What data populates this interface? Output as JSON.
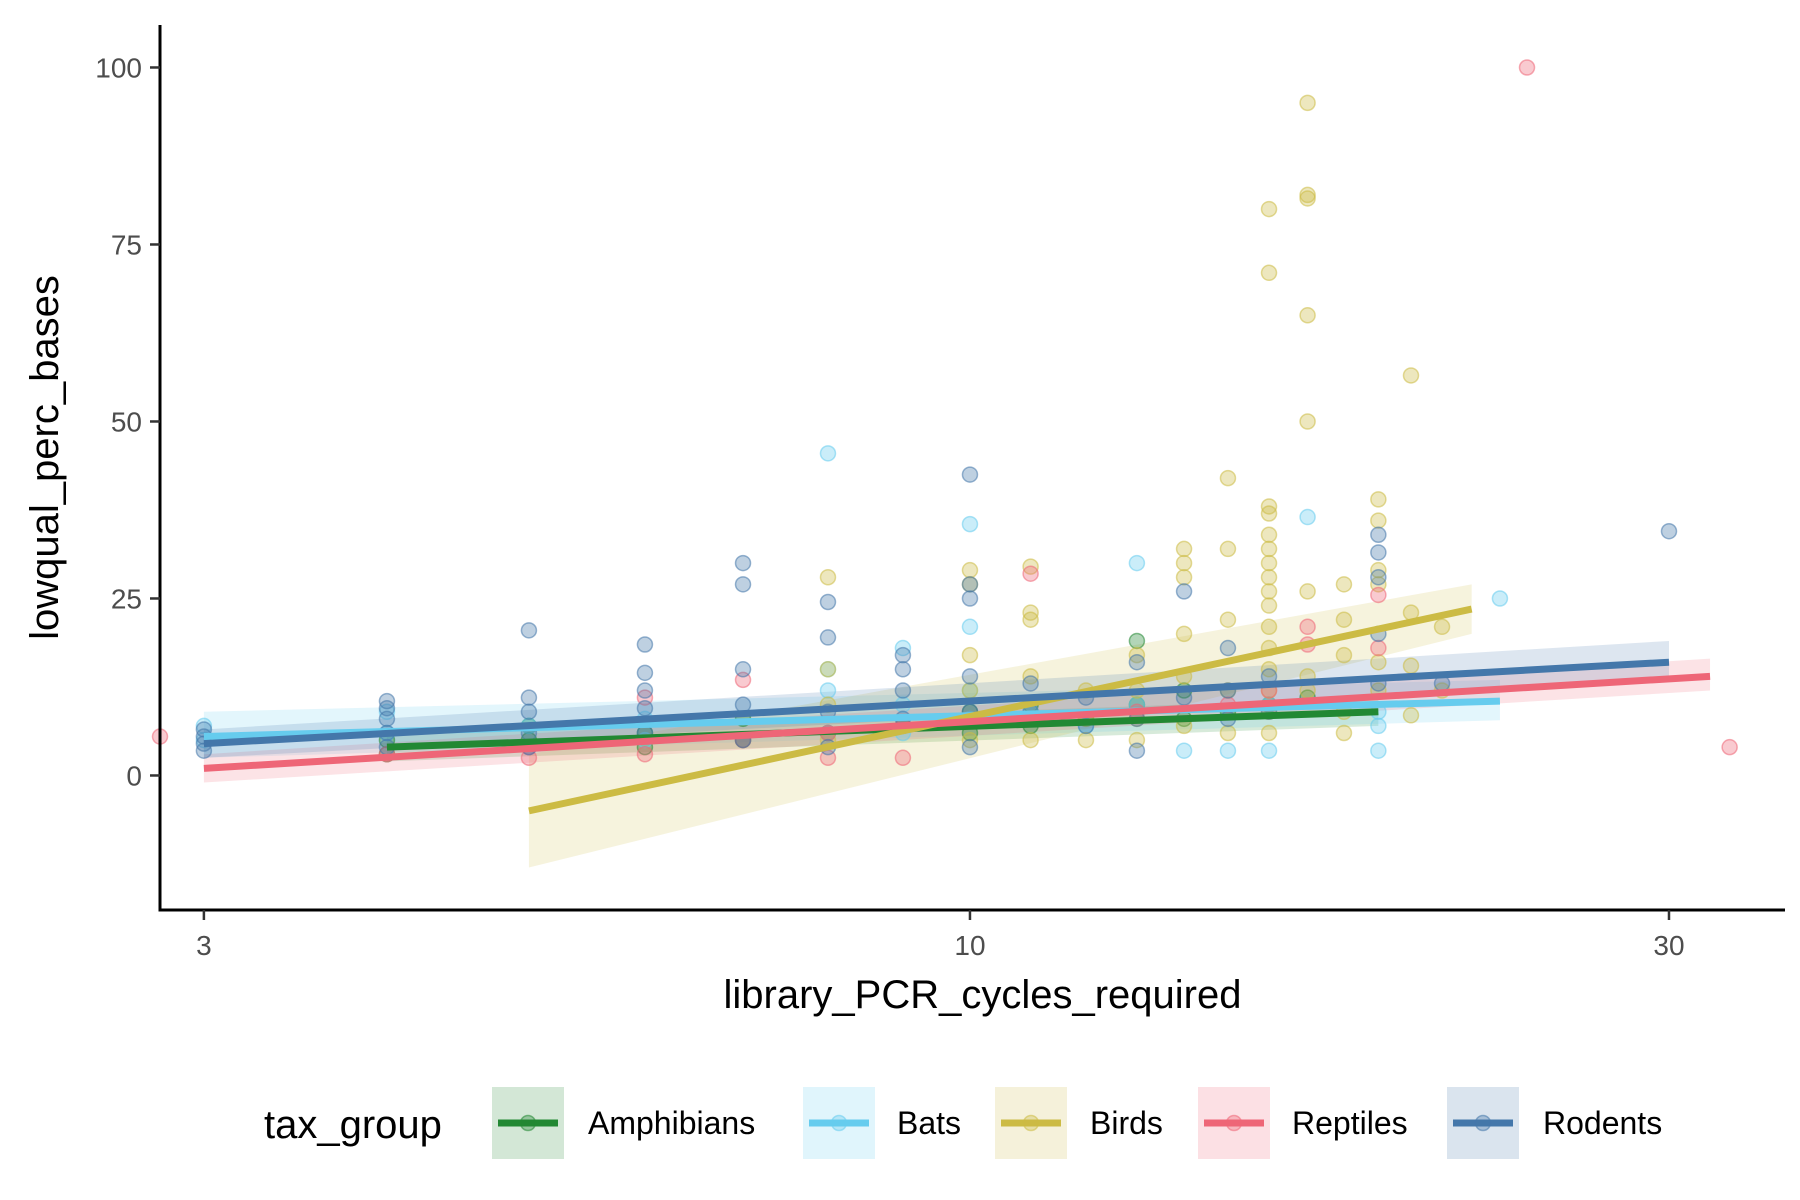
{
  "chart_data": {
    "type": "scatter",
    "xlabel": "library_PCR_cycles_required",
    "ylabel": "lowqual_perc_bases",
    "x_scale": "log10",
    "x_ticks": [
      3,
      10,
      30
    ],
    "y_ticks": [
      0,
      25,
      50,
      75,
      100
    ],
    "xlim": [
      2.8,
      36
    ],
    "ylim": [
      -19,
      106
    ],
    "grid": false,
    "legend_title": "tax_group",
    "legend_position": "bottom",
    "series": [
      {
        "name": "Amphibians",
        "color": "#228833",
        "trend": {
          "x": [
            4,
            19
          ],
          "y": [
            4,
            9
          ]
        },
        "band": {
          "x": [
            4,
            19
          ],
          "lower": [
            2,
            7
          ],
          "upper": [
            6,
            11
          ]
        },
        "points": [
          [
            4,
            3
          ],
          [
            4,
            5
          ],
          [
            5,
            5
          ],
          [
            5,
            7
          ],
          [
            6,
            4
          ],
          [
            6,
            6
          ],
          [
            7,
            5
          ],
          [
            7,
            8
          ],
          [
            8,
            6
          ],
          [
            9,
            7
          ],
          [
            10,
            6
          ],
          [
            10,
            9
          ],
          [
            11,
            7
          ],
          [
            11,
            10
          ],
          [
            12,
            8
          ],
          [
            13,
            10
          ],
          [
            13,
            19
          ],
          [
            14,
            8
          ],
          [
            14,
            12
          ],
          [
            15,
            9
          ],
          [
            16,
            10
          ],
          [
            17,
            11
          ]
        ]
      },
      {
        "name": "Bats",
        "color": "#66CCEE",
        "trend": {
          "x": [
            3,
            23
          ],
          "y": [
            5.5,
            10.5
          ]
        },
        "band": {
          "x": [
            3,
            23
          ],
          "lower": [
            2.5,
            7.8
          ],
          "upper": [
            9,
            13.5
          ]
        },
        "points": [
          [
            3,
            5
          ],
          [
            3,
            7
          ],
          [
            4,
            6
          ],
          [
            4,
            9
          ],
          [
            5,
            4
          ],
          [
            5,
            7
          ],
          [
            6,
            5
          ],
          [
            6,
            8
          ],
          [
            8,
            45.5
          ],
          [
            8,
            12
          ],
          [
            8,
            15
          ],
          [
            8,
            6
          ],
          [
            9,
            18
          ],
          [
            9,
            10
          ],
          [
            9,
            6
          ],
          [
            10,
            35.5
          ],
          [
            10,
            21
          ],
          [
            10,
            12
          ],
          [
            10,
            8
          ],
          [
            11,
            9
          ],
          [
            12,
            7
          ],
          [
            13,
            30
          ],
          [
            13,
            10
          ],
          [
            14,
            3.5
          ],
          [
            15,
            3.5
          ],
          [
            16,
            3.5
          ],
          [
            16,
            10
          ],
          [
            17,
            36.5
          ],
          [
            19,
            3.5
          ],
          [
            19,
            7
          ],
          [
            19,
            9
          ],
          [
            23,
            25
          ]
        ]
      },
      {
        "name": "Birds",
        "color": "#CCBB44",
        "trend": {
          "x": [
            5,
            22
          ],
          "y": [
            -5,
            23.5
          ]
        },
        "band": {
          "x": [
            5,
            22
          ],
          "lower": [
            -13,
            20
          ],
          "upper": [
            3,
            27
          ]
        },
        "points": [
          [
            8,
            28
          ],
          [
            8,
            15
          ],
          [
            8,
            10
          ],
          [
            8,
            5
          ],
          [
            10,
            29
          ],
          [
            10,
            27
          ],
          [
            10,
            17
          ],
          [
            10,
            12
          ],
          [
            10,
            5
          ],
          [
            11,
            29.5
          ],
          [
            11,
            23
          ],
          [
            11,
            22
          ],
          [
            11,
            14
          ],
          [
            11,
            5
          ],
          [
            12,
            12
          ],
          [
            12,
            8
          ],
          [
            12,
            5
          ],
          [
            13,
            17
          ],
          [
            13,
            12
          ],
          [
            13,
            8
          ],
          [
            13,
            5
          ],
          [
            14,
            32
          ],
          [
            14,
            30
          ],
          [
            14,
            28
          ],
          [
            14,
            20
          ],
          [
            14,
            14
          ],
          [
            14,
            7
          ],
          [
            15,
            42
          ],
          [
            15,
            32
          ],
          [
            15,
            22
          ],
          [
            15,
            12
          ],
          [
            15,
            6
          ],
          [
            16,
            80
          ],
          [
            16,
            71
          ],
          [
            16,
            38
          ],
          [
            16,
            37
          ],
          [
            16,
            34
          ],
          [
            16,
            32
          ],
          [
            16,
            30
          ],
          [
            16,
            28
          ],
          [
            16,
            26
          ],
          [
            16,
            24
          ],
          [
            16,
            21
          ],
          [
            16,
            18
          ],
          [
            16,
            15
          ],
          [
            16,
            12
          ],
          [
            16,
            9
          ],
          [
            16,
            6
          ],
          [
            17,
            95
          ],
          [
            17,
            82
          ],
          [
            17,
            81.5
          ],
          [
            17,
            65
          ],
          [
            17,
            50
          ],
          [
            17,
            26
          ],
          [
            17,
            14
          ],
          [
            17,
            12
          ],
          [
            18,
            27
          ],
          [
            18,
            22
          ],
          [
            18,
            17
          ],
          [
            18,
            9
          ],
          [
            18,
            6
          ],
          [
            19,
            39
          ],
          [
            19,
            36
          ],
          [
            19,
            29
          ],
          [
            19,
            27
          ],
          [
            19,
            16
          ],
          [
            19,
            12
          ],
          [
            20,
            56.5
          ],
          [
            20,
            23
          ],
          [
            20,
            15.5
          ],
          [
            20,
            8.5
          ],
          [
            21,
            21
          ],
          [
            21,
            12
          ]
        ]
      },
      {
        "name": "Reptiles",
        "color": "#EE6677",
        "trend": {
          "x": [
            3,
            32
          ],
          "y": [
            1,
            14
          ]
        },
        "band": {
          "x": [
            3,
            32
          ],
          "lower": [
            -1,
            12
          ],
          "upper": [
            3,
            16.5
          ]
        },
        "points": [
          [
            2.8,
            5.5
          ],
          [
            4,
            3
          ],
          [
            5,
            2.5
          ],
          [
            5,
            4
          ],
          [
            6,
            3
          ],
          [
            6,
            11
          ],
          [
            7,
            13.5
          ],
          [
            7,
            5
          ],
          [
            8,
            2.5
          ],
          [
            8,
            6
          ],
          [
            9,
            2.5
          ],
          [
            9,
            7
          ],
          [
            11,
            28.5
          ],
          [
            11,
            8
          ],
          [
            13,
            9
          ],
          [
            15,
            10
          ],
          [
            16,
            12
          ],
          [
            17,
            21
          ],
          [
            17,
            18.5
          ],
          [
            19,
            25.5
          ],
          [
            19,
            18
          ],
          [
            24,
            100
          ],
          [
            33,
            4
          ]
        ]
      },
      {
        "name": "Rodents",
        "color": "#4477AA",
        "trend": {
          "x": [
            3,
            30
          ],
          "y": [
            4.5,
            16
          ]
        },
        "band": {
          "x": [
            3,
            30
          ],
          "lower": [
            2.5,
            13.5
          ],
          "upper": [
            6.5,
            19
          ]
        },
        "points": [
          [
            3,
            3.5
          ],
          [
            3,
            4.5
          ],
          [
            3,
            5.5
          ],
          [
            3,
            6.5
          ],
          [
            4,
            4
          ],
          [
            4,
            6
          ],
          [
            4,
            8
          ],
          [
            4,
            9.5
          ],
          [
            4,
            10.5
          ],
          [
            5,
            20.5
          ],
          [
            5,
            11
          ],
          [
            5,
            9
          ],
          [
            5,
            6
          ],
          [
            5,
            4
          ],
          [
            6,
            18.5
          ],
          [
            6,
            14.5
          ],
          [
            6,
            12
          ],
          [
            6,
            9.5
          ],
          [
            6,
            6
          ],
          [
            7,
            30
          ],
          [
            7,
            27
          ],
          [
            7,
            15
          ],
          [
            7,
            10
          ],
          [
            7,
            5
          ],
          [
            8,
            24.5
          ],
          [
            8,
            19.5
          ],
          [
            8,
            9
          ],
          [
            8,
            4
          ],
          [
            9,
            17
          ],
          [
            9,
            15
          ],
          [
            9,
            12
          ],
          [
            9,
            8
          ],
          [
            10,
            42.5
          ],
          [
            10,
            27
          ],
          [
            10,
            25
          ],
          [
            10,
            14
          ],
          [
            10,
            9
          ],
          [
            10,
            4
          ],
          [
            11,
            13
          ],
          [
            11,
            9
          ],
          [
            12,
            11
          ],
          [
            12,
            7
          ],
          [
            13,
            16
          ],
          [
            13,
            8
          ],
          [
            13,
            3.5
          ],
          [
            14,
            26
          ],
          [
            14,
            11
          ],
          [
            15,
            18
          ],
          [
            15,
            12
          ],
          [
            15,
            8
          ],
          [
            16,
            14
          ],
          [
            16,
            9
          ],
          [
            19,
            34
          ],
          [
            19,
            31.5
          ],
          [
            19,
            28
          ],
          [
            19,
            20
          ],
          [
            19,
            13
          ],
          [
            21,
            13
          ],
          [
            30,
            34.5
          ]
        ]
      }
    ]
  }
}
